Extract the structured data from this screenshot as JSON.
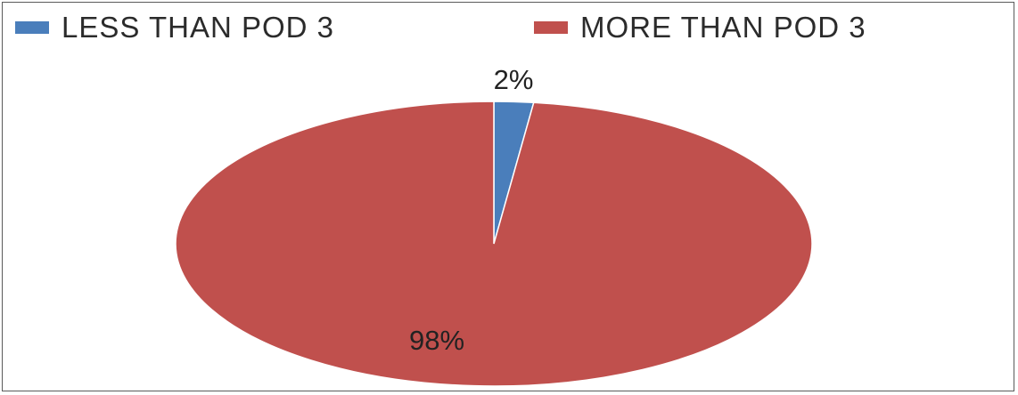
{
  "chart_data": {
    "type": "pie",
    "categories": [
      "LESS THAN POD 3",
      "MORE THAN POD 3"
    ],
    "values": [
      2,
      98
    ],
    "data_labels": [
      "2%",
      "98%"
    ],
    "colors": [
      "#4a7ebb",
      "#c0504d"
    ],
    "legend_position": "top",
    "title": ""
  }
}
